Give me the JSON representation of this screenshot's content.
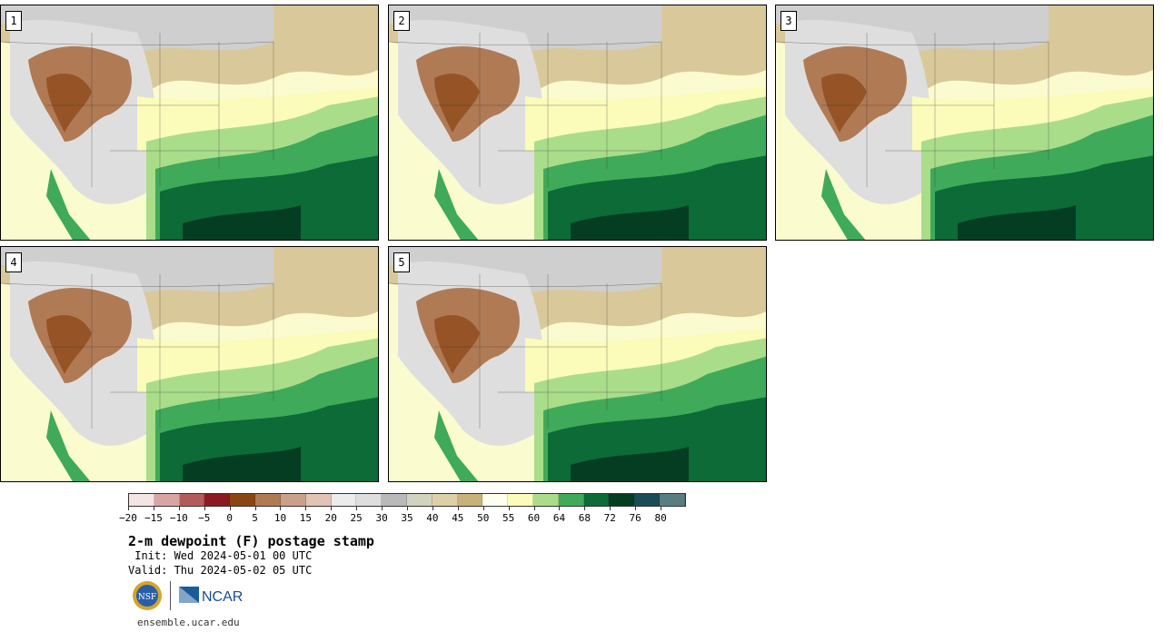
{
  "panels": [
    {
      "label": "1"
    },
    {
      "label": "2"
    },
    {
      "label": "3"
    },
    {
      "label": "4"
    },
    {
      "label": "5"
    }
  ],
  "colorbar": {
    "ticks": [
      "−20",
      "−15",
      "−10",
      "−5",
      "0",
      "5",
      "10",
      "15",
      "20",
      "25",
      "30",
      "35",
      "40",
      "45",
      "50",
      "55",
      "60",
      "64",
      "68",
      "72",
      "76",
      "80"
    ],
    "colors": [
      "#f5e4e4",
      "#d8a5a5",
      "#b45a5a",
      "#8c1a22",
      "#8b4513",
      "#b07a55",
      "#c9a08a",
      "#e2c3b4",
      "#ececec",
      "#dedede",
      "#b9b9b9",
      "#d2d2c0",
      "#ddd0a6",
      "#c9b27a",
      "#fffff0",
      "#fbfbba",
      "#aadd8a",
      "#3faa5a",
      "#0c6b36",
      "#053d22",
      "#1c4b58",
      "#587e80"
    ]
  },
  "title": "2-m dewpoint (F) postage stamp",
  "init": " Init: Wed 2024-05-01 00 UTC",
  "valid": "Valid: Thu 2024-05-02 05 UTC",
  "logos": {
    "nsf": "NSF",
    "ncar": "NCAR"
  },
  "site": "ensemble.ucar.edu"
}
